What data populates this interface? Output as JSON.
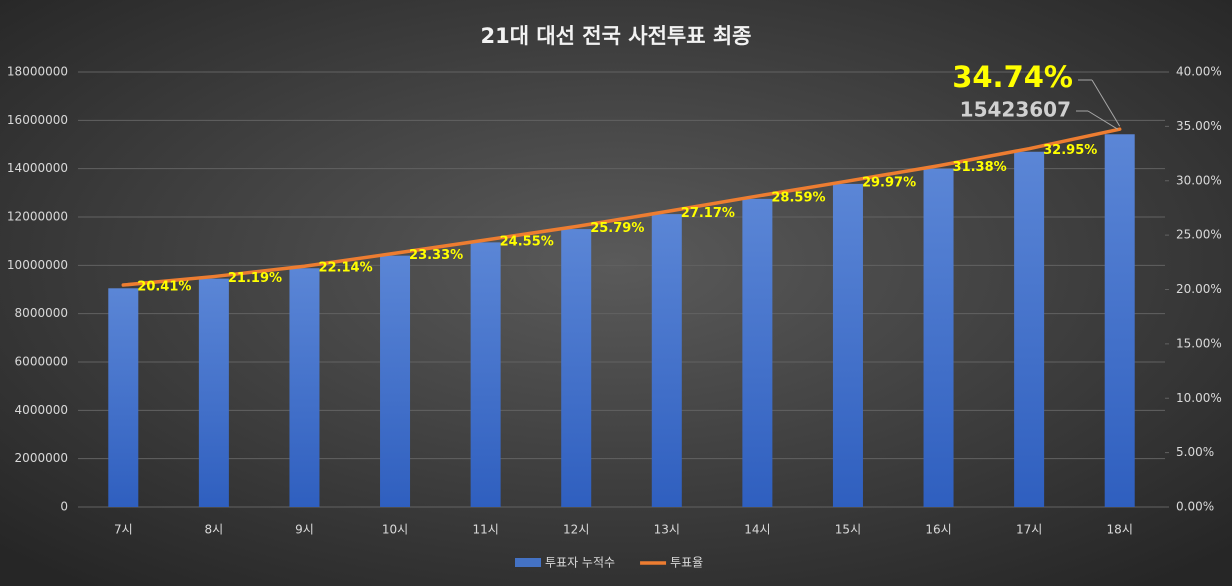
{
  "chart_data": {
    "type": "bar_line",
    "title": "21대 대선 전국 사전투표 최종",
    "categories": [
      "7시",
      "8시",
      "9시",
      "10시",
      "11시",
      "12시",
      "13시",
      "14시",
      "15시",
      "16시",
      "17시",
      "18시"
    ],
    "series": [
      {
        "name": "투표자 누적수",
        "type": "bar",
        "color": "#4472c4",
        "values": [
          9050000,
          9450000,
          9880000,
          10400000,
          10950000,
          11500000,
          12120000,
          12750000,
          13370000,
          14000000,
          14700000,
          15423607
        ]
      },
      {
        "name": "투표율",
        "type": "line",
        "axis": "y2",
        "color": "#ed7d31",
        "values": [
          20.41,
          21.19,
          22.14,
          23.33,
          24.55,
          25.79,
          27.17,
          28.59,
          29.97,
          31.38,
          32.95,
          34.74
        ],
        "value_labels": [
          "20.41%",
          "21.19%",
          "22.14%",
          "23.33%",
          "24.55%",
          "25.79%",
          "27.17%",
          "28.59%",
          "29.97%",
          "31.38%",
          "32.95%",
          "34.74%"
        ]
      }
    ],
    "ylim": [
      0,
      18000000
    ],
    "yticks": [
      0,
      2000000,
      4000000,
      6000000,
      8000000,
      10000000,
      12000000,
      14000000,
      16000000,
      18000000
    ],
    "y2lim": [
      0,
      40
    ],
    "y2ticks": [
      {
        "value": 0,
        "label": "0.00%"
      },
      {
        "value": 5,
        "label": "5.00%"
      },
      {
        "value": 10,
        "label": "10.00%"
      },
      {
        "value": 15,
        "label": "15.00%"
      },
      {
        "value": 20,
        "label": "20.00%"
      },
      {
        "value": 25,
        "label": "25.00%"
      },
      {
        "value": 30,
        "label": "30.00%"
      },
      {
        "value": 35,
        "label": "35.00%"
      },
      {
        "value": 40,
        "label": "40.00%"
      }
    ],
    "grid": true,
    "legend": "bottom"
  }
}
